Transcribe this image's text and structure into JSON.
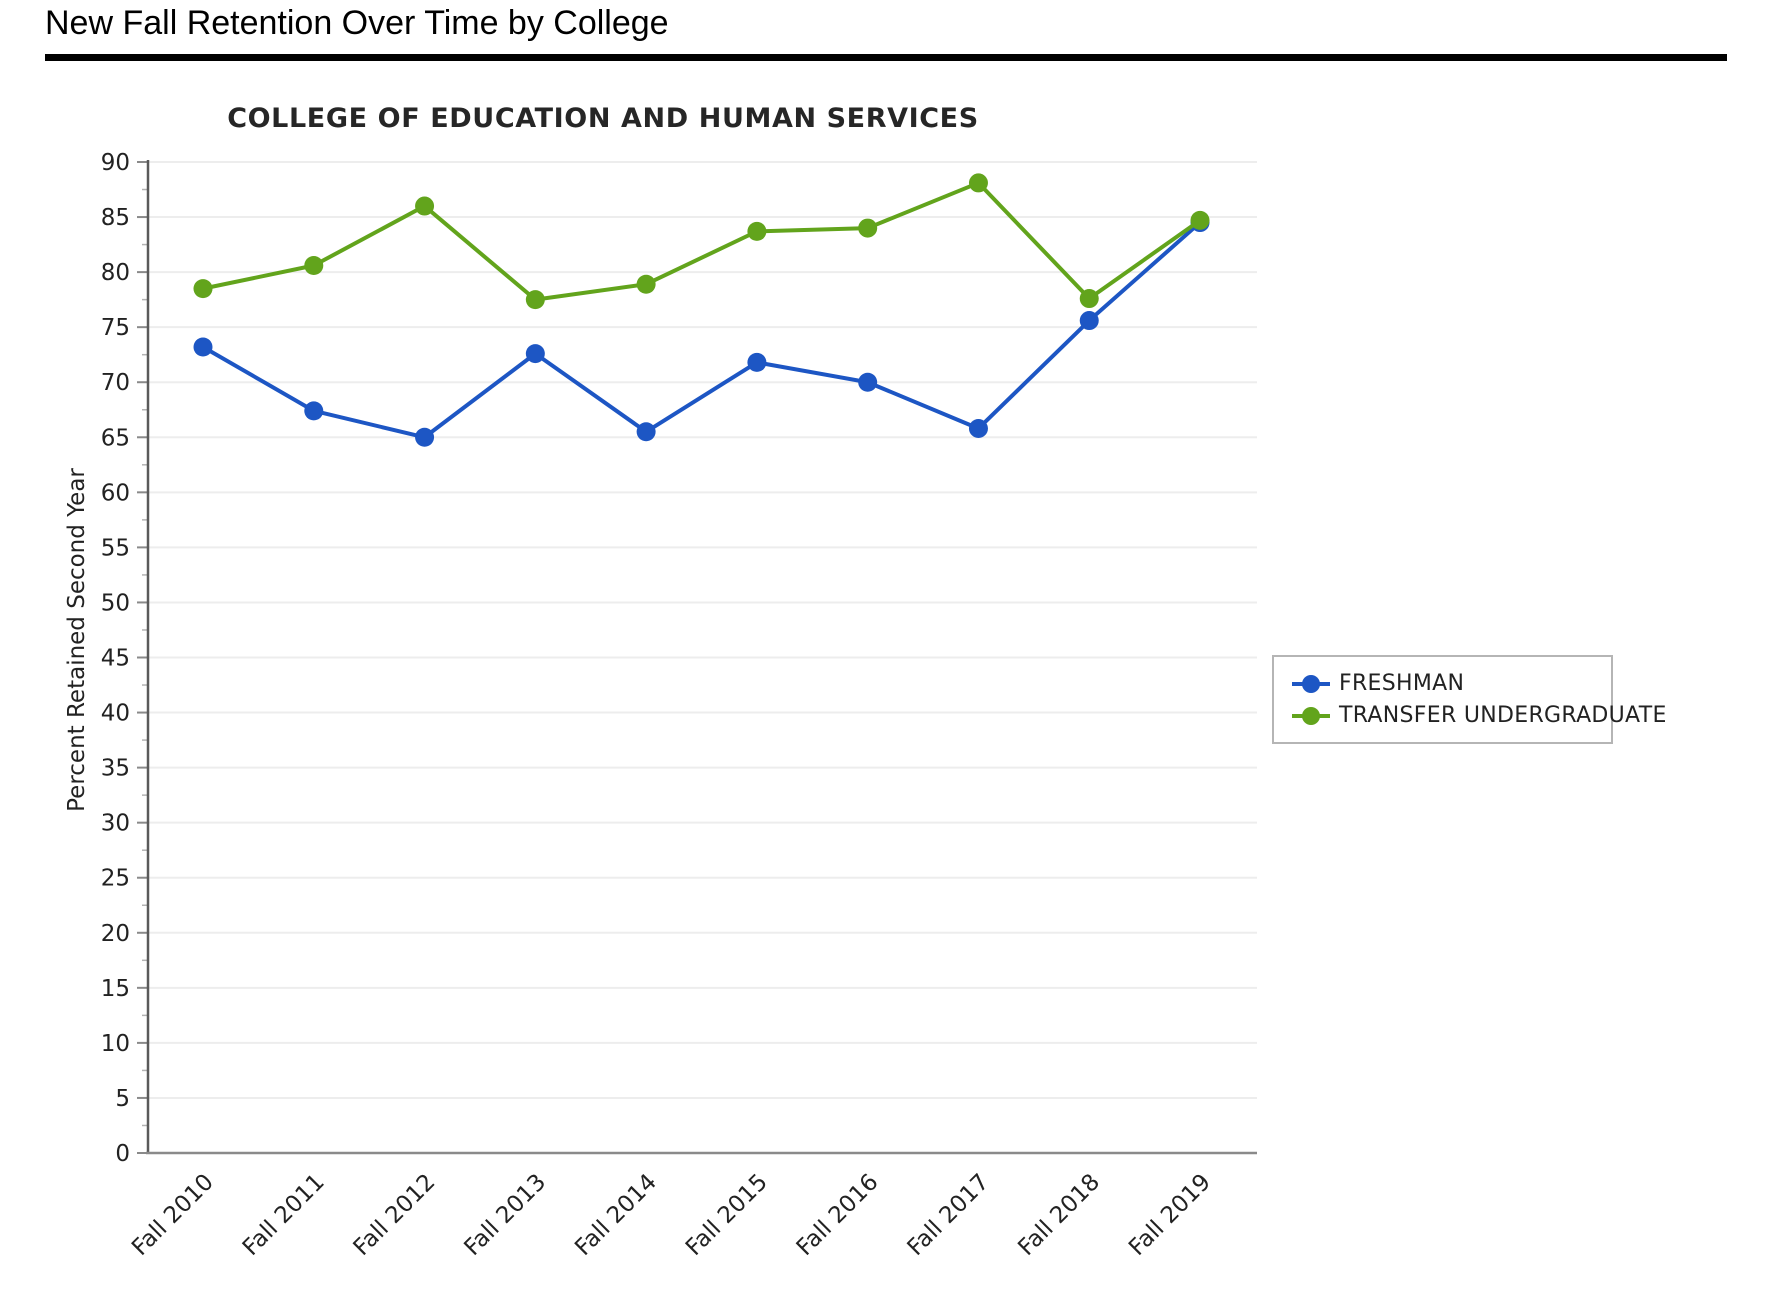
{
  "page": {
    "title": "New Fall Retention Over Time by College"
  },
  "chart_data": {
    "type": "line",
    "title": "COLLEGE OF EDUCATION AND HUMAN SERVICES",
    "xlabel": "",
    "ylabel": "Percent Retained Second Year",
    "categories": [
      "Fall 2010",
      "Fall 2011",
      "Fall 2012",
      "Fall 2013",
      "Fall 2014",
      "Fall 2015",
      "Fall 2016",
      "Fall 2017",
      "Fall 2018",
      "Fall 2019"
    ],
    "ylim": [
      0,
      90
    ],
    "ytick_step": 5,
    "grid": true,
    "legend_position": "right",
    "series": [
      {
        "name": "FRESHMAN",
        "color": "#1D56C4",
        "values": [
          73.2,
          67.4,
          65.0,
          72.6,
          65.5,
          71.8,
          70.0,
          65.8,
          75.6,
          84.5
        ]
      },
      {
        "name": "TRANSFER UNDERGRADUATE",
        "color": "#62A41C",
        "values": [
          78.5,
          80.6,
          86.0,
          77.5,
          78.9,
          83.7,
          84.0,
          88.1,
          77.6,
          84.7
        ]
      }
    ]
  }
}
